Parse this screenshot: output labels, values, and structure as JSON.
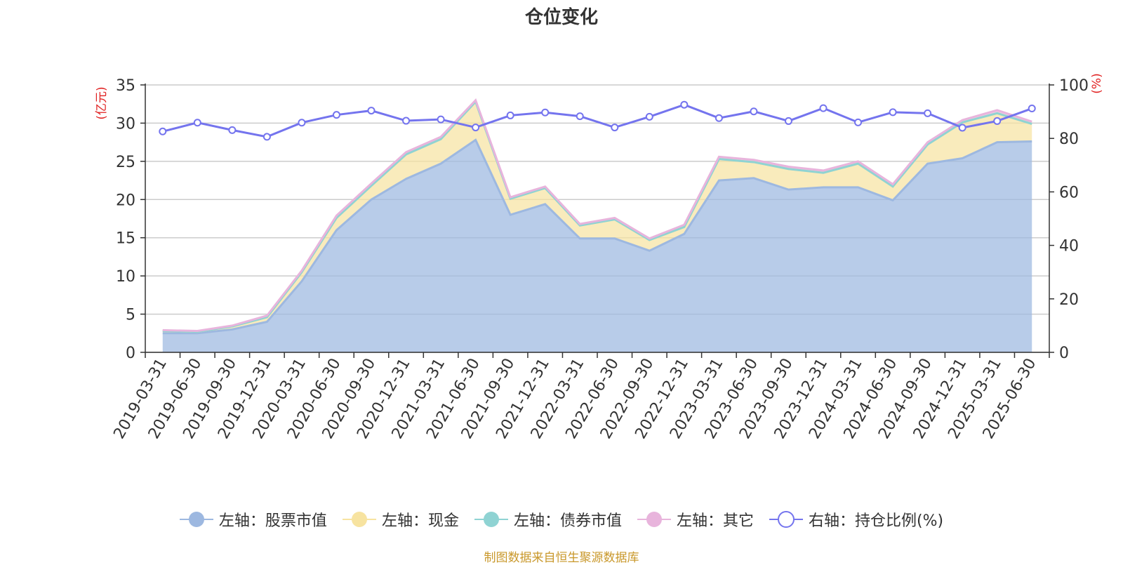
{
  "chart_data": {
    "type": "area",
    "title": "仓位变化",
    "y_left_label": "(亿元)",
    "y_right_label": "(%)",
    "ylim_left": [
      0,
      35
    ],
    "ylim_right": [
      0,
      100
    ],
    "yticks_left": [
      0,
      5,
      10,
      15,
      20,
      25,
      30,
      35
    ],
    "yticks_right": [
      0,
      20,
      40,
      60,
      80,
      100
    ],
    "grid": true,
    "legend_position": "bottom",
    "categories": [
      "2019-03-31",
      "2019-06-30",
      "2019-09-30",
      "2019-12-31",
      "2020-03-31",
      "2020-06-30",
      "2020-09-30",
      "2020-12-31",
      "2021-03-31",
      "2021-06-30",
      "2021-09-30",
      "2021-12-31",
      "2022-03-31",
      "2022-06-30",
      "2022-09-30",
      "2022-12-31",
      "2023-03-31",
      "2023-06-30",
      "2023-09-30",
      "2023-12-31",
      "2024-03-31",
      "2024-06-30",
      "2024-09-30",
      "2024-12-31",
      "2025-03-31",
      "2025-06-30"
    ],
    "series": [
      {
        "name": "左轴：股票市值",
        "axis": "left",
        "color": "#9db8e0",
        "values": [
          2.5,
          2.5,
          3.0,
          4.0,
          9.3,
          16.0,
          20.0,
          22.7,
          24.7,
          27.8,
          18.0,
          19.4,
          14.9,
          14.9,
          13.3,
          15.5,
          22.5,
          22.8,
          21.3,
          21.6,
          21.6,
          19.9,
          24.7,
          25.4,
          27.5,
          27.6
        ]
      },
      {
        "name": "左轴：现金",
        "axis": "left",
        "color": "#f7e3a0",
        "values": [
          0.3,
          0.2,
          0.4,
          0.6,
          1.2,
          1.6,
          1.8,
          3.2,
          3.2,
          5.0,
          2.1,
          2.1,
          1.7,
          2.5,
          1.4,
          0.9,
          2.8,
          2.1,
          2.7,
          1.9,
          3.1,
          1.8,
          2.5,
          4.7,
          3.8,
          2.3
        ]
      },
      {
        "name": "左轴：债券市值",
        "axis": "left",
        "color": "#8fd3d3",
        "values": [
          0,
          0,
          0,
          0,
          0,
          0,
          0,
          0,
          0,
          0,
          0,
          0,
          0,
          0,
          0,
          0,
          0,
          0,
          0,
          0,
          0,
          0,
          0,
          0,
          0,
          0
        ]
      },
      {
        "name": "左轴：其它",
        "axis": "left",
        "color": "#e8b4dc",
        "values": [
          0.1,
          0.1,
          0.1,
          0.2,
          0.2,
          0.3,
          0.3,
          0.3,
          0.3,
          0.2,
          0.2,
          0.2,
          0.2,
          0.2,
          0.2,
          0.3,
          0.3,
          0.3,
          0.3,
          0.3,
          0.3,
          0.3,
          0.3,
          0.3,
          0.4,
          0.3
        ]
      },
      {
        "name": "右轴：持仓比例(%)",
        "axis": "right",
        "type": "line",
        "color": "#7474ee",
        "values": [
          82.6,
          85.9,
          83.1,
          80.6,
          85.9,
          88.8,
          90.4,
          86.6,
          87.1,
          84.1,
          88.6,
          89.7,
          88.3,
          84.1,
          88.1,
          92.6,
          87.6,
          90.1,
          86.5,
          91.3,
          86.0,
          89.8,
          89.4,
          84.0,
          86.5,
          91.2
        ]
      }
    ]
  },
  "source_note": "制图数据来自恒生聚源数据库"
}
